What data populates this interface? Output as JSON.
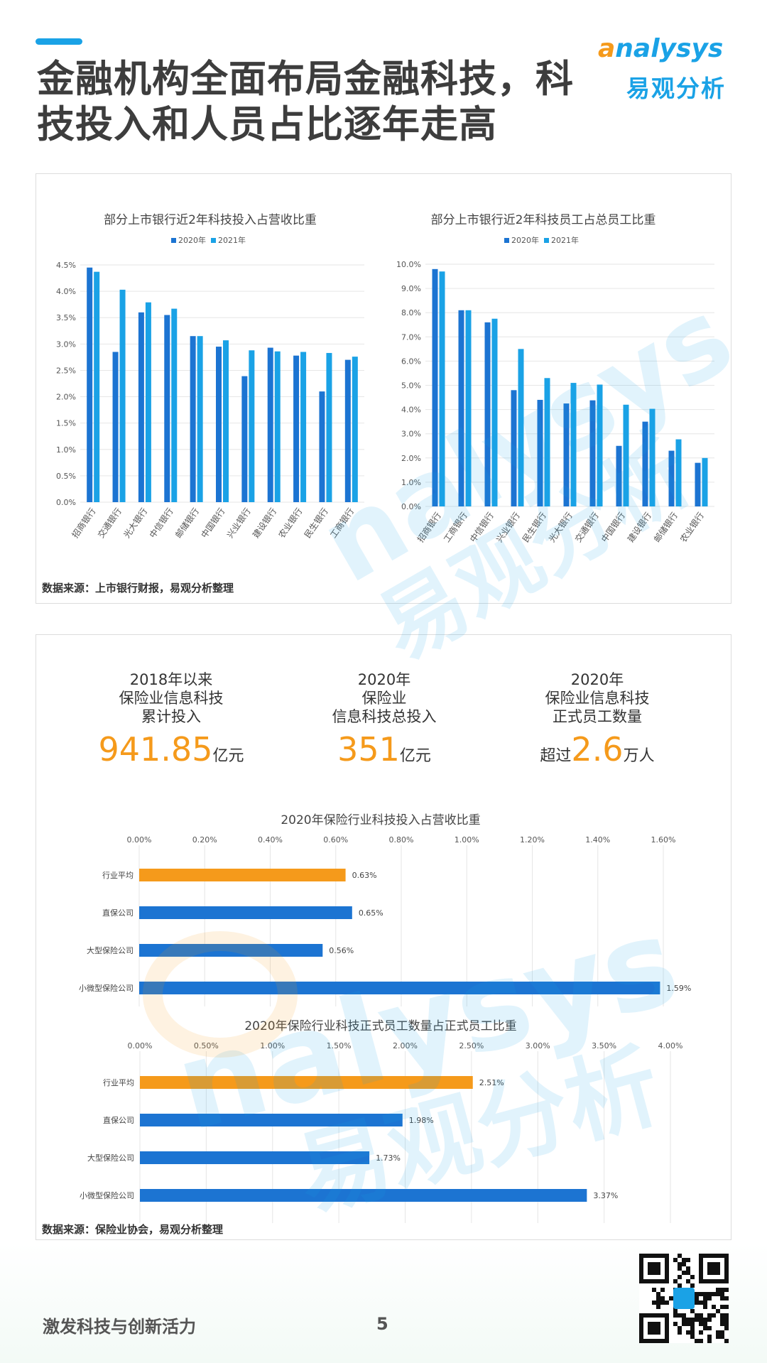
{
  "header": {
    "title_line1": "金融机构全面布局金融科技，科",
    "title_line2": "技投入和人员占比逐年走高",
    "logo_en_prefix": "a",
    "logo_en_rest": "nalysys",
    "logo_cn": "易观分析"
  },
  "panel1": {
    "source": "数据来源：上市银行财报，易观分析整理"
  },
  "panel2": {
    "source": "数据来源：保险业协会，易观分析整理",
    "stats": [
      {
        "label": "2018年以来\n保险业信息科技\n累计投入",
        "prefix": "",
        "value": "941.85",
        "unit": "亿元"
      },
      {
        "label": "2020年\n保险业\n信息科技总投入",
        "prefix": "",
        "value": "351",
        "unit": "亿元"
      },
      {
        "label": "2020年\n保险业信息科技\n正式员工数量",
        "prefix": "超过",
        "value": "2.6",
        "unit": "万人"
      }
    ]
  },
  "footer": {
    "slogan": "激发科技与创新活力",
    "page_number": "5"
  },
  "colors": {
    "series2020": "#1c74d2",
    "series2021": "#1aa2e6",
    "highlight": "#f59a1b",
    "bar": "#1c74d2"
  },
  "chart_data": [
    {
      "type": "bar",
      "title": "部分上市银行近2年科技投入占营收比重",
      "categories": [
        "招商银行",
        "交通银行",
        "光大银行",
        "中信银行",
        "邮储银行",
        "中国银行",
        "兴业银行",
        "建设银行",
        "农业银行",
        "民生银行",
        "工商银行"
      ],
      "series": [
        {
          "name": "2020年",
          "values": [
            4.45,
            2.85,
            3.6,
            3.55,
            3.15,
            2.95,
            2.39,
            2.93,
            2.78,
            2.1,
            2.7
          ]
        },
        {
          "name": "2021年",
          "values": [
            4.37,
            4.03,
            3.79,
            3.67,
            3.15,
            3.07,
            2.88,
            2.86,
            2.85,
            2.83,
            2.76
          ]
        }
      ],
      "ylim": [
        0,
        4.5
      ],
      "yticks": [
        "0.0%",
        "0.5%",
        "1.0%",
        "1.5%",
        "2.0%",
        "2.5%",
        "3.0%",
        "3.5%",
        "4.0%",
        "4.5%"
      ],
      "grid": true,
      "legend": "top"
    },
    {
      "type": "bar",
      "title": "部分上市银行近2年科技员工占总员工比重",
      "categories": [
        "招商银行",
        "工商银行",
        "中信银行",
        "兴业银行",
        "民生银行",
        "光大银行",
        "交通银行",
        "中国银行",
        "建设银行",
        "邮储银行",
        "农业银行"
      ],
      "series": [
        {
          "name": "2020年",
          "values": [
            9.8,
            8.1,
            7.6,
            4.8,
            4.4,
            4.25,
            4.38,
            2.5,
            3.5,
            2.3,
            1.8
          ]
        },
        {
          "name": "2021年",
          "values": [
            9.7,
            8.1,
            7.75,
            6.5,
            5.3,
            5.1,
            5.03,
            4.2,
            4.03,
            2.77,
            2.0
          ]
        }
      ],
      "ylim": [
        0,
        10
      ],
      "yticks": [
        "0.0%",
        "1.0%",
        "2.0%",
        "3.0%",
        "4.0%",
        "5.0%",
        "6.0%",
        "7.0%",
        "8.0%",
        "9.0%",
        "10.0%"
      ],
      "grid": true,
      "legend": "top"
    },
    {
      "type": "bar",
      "orientation": "horizontal",
      "title": "2020年保险行业科技投入占营收比重",
      "categories": [
        "行业平均",
        "直保公司",
        "大型保险公司",
        "小微型保险公司"
      ],
      "values": [
        0.63,
        0.65,
        0.56,
        1.59
      ],
      "value_labels": [
        "0.63%",
        "0.65%",
        "0.56%",
        "1.59%"
      ],
      "highlight_index": 0,
      "xlim": [
        0,
        1.6
      ],
      "xticks": [
        "0.00%",
        "0.20%",
        "0.40%",
        "0.60%",
        "0.80%",
        "1.00%",
        "1.20%",
        "1.40%",
        "1.60%"
      ],
      "grid": true
    },
    {
      "type": "bar",
      "orientation": "horizontal",
      "title": "2020年保险行业科技正式员工数量占正式员工比重",
      "categories": [
        "行业平均",
        "直保公司",
        "大型保险公司",
        "小微型保险公司"
      ],
      "values": [
        2.51,
        1.98,
        1.73,
        3.37
      ],
      "value_labels": [
        "2.51%",
        "1.98%",
        "1.73%",
        "3.37%"
      ],
      "highlight_index": 0,
      "xlim": [
        0,
        4.0
      ],
      "xticks": [
        "0.00%",
        "0.50%",
        "1.00%",
        "1.50%",
        "2.00%",
        "2.50%",
        "3.00%",
        "3.50%",
        "4.00%"
      ],
      "grid": true
    }
  ]
}
